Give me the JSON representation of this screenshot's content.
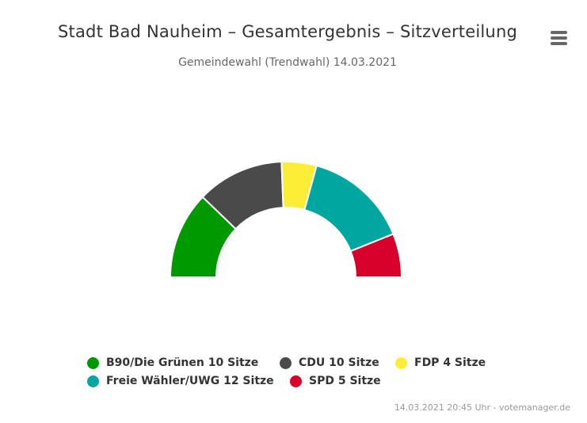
{
  "chart_data": {
    "type": "pie",
    "variant": "semi-circle-donut",
    "title": "Stadt Bad Nauheim – Gesamtergebnis – Sitzverteilung",
    "subtitle": "Gemeindewahl (Trendwahl) 14.03.2021",
    "series": [
      {
        "name": "B90/Die Grünen",
        "value": 10,
        "unit_label": "Sitze",
        "color": "#009900"
      },
      {
        "name": "CDU",
        "value": 10,
        "unit_label": "Sitze",
        "color": "#4a4a4a"
      },
      {
        "name": "FDP",
        "value": 4,
        "unit_label": "Sitze",
        "color": "#fcee36"
      },
      {
        "name": "Freie Wähler/UWG",
        "value": 12,
        "unit_label": "Sitze",
        "color": "#00a6a0"
      },
      {
        "name": "SPD",
        "value": 5,
        "unit_label": "Sitze",
        "color": "#d6002a"
      }
    ],
    "legend_placement": "bottom",
    "credits": "14.03.2021 20:45 Uhr - votemanager.de"
  },
  "menu": {
    "icon": "hamburger-menu-icon"
  }
}
